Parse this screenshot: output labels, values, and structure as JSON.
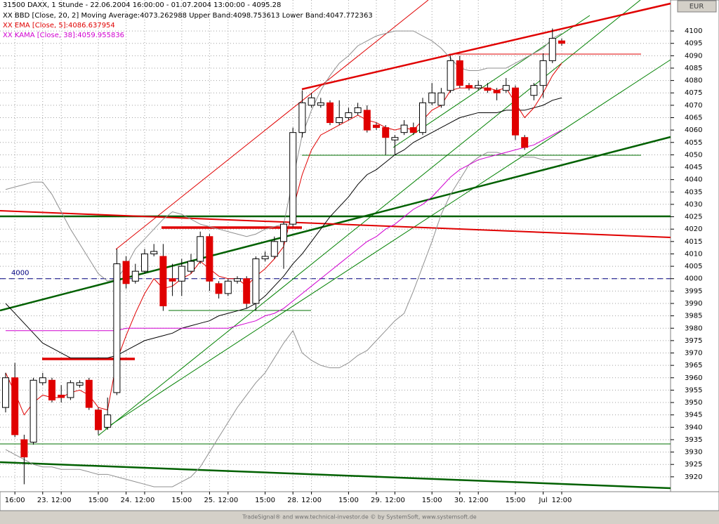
{
  "chart_data": {
    "type": "candlestick",
    "title": "31500 DAXX, 1 Stunde - 22.06.2004 16:00:00 - 01.07.2004 13:00:00 - 4095.28",
    "currency": "EUR",
    "footer": "TradeSignal® and www.technical-investor.de © by SystemSoft, www.systemsoft.de",
    "legend": [
      {
        "text": "XX BBD [Close, 20, 2] Moving Average:4073.262988 Upper Band:4098.753613 Lower Band:4047.772363",
        "color": "#000000"
      },
      {
        "text": "XX EMA [Close, 5]:4086.637954",
        "color": "#e00000"
      },
      {
        "text": "XX KAMA [Close, 38]:4059.955836",
        "color": "#d000d0"
      }
    ],
    "reference_line": 4000,
    "categories": [
      null,
      "16:00",
      null,
      null,
      "23.",
      null,
      "12:00",
      null,
      null,
      null,
      "15:00",
      null,
      null,
      "24.",
      null,
      "12:00",
      null,
      null,
      null,
      "15:00",
      null,
      null,
      "25.",
      null,
      "12:00",
      null,
      null,
      null,
      "15:00",
      null,
      null,
      "28.",
      null,
      "12:00",
      null,
      null,
      null,
      "15:00",
      null,
      null,
      "29.",
      null,
      "12:00",
      null,
      null,
      null,
      "15:00",
      null,
      null,
      "30.",
      null,
      "12:00",
      null,
      null,
      null,
      "15:00",
      null,
      null,
      "Jul",
      null,
      "12:00"
    ],
    "open": [
      3948,
      3960,
      3935,
      3934,
      3958,
      3959,
      3953,
      3952,
      3957,
      3959,
      3947,
      3940,
      3954,
      4007,
      3999,
      4003,
      4010,
      4009,
      4000,
      3999,
      4003,
      4007,
      4017,
      3998,
      3994,
      3999,
      4000,
      3990,
      4008,
      4009,
      4015,
      4022,
      4059,
      4070,
      4070,
      4071,
      4063,
      4065,
      4067,
      4068,
      4062,
      4061,
      4056,
      4059,
      4061,
      4059,
      4071,
      4070,
      4076,
      4088,
      4078,
      4077,
      4077,
      4076,
      4076,
      4077,
      4057,
      4074,
      4078,
      4088,
      4096
    ],
    "high": [
      3962,
      3966,
      3937,
      3960,
      3962,
      3960,
      3957,
      3959,
      3959,
      3960,
      3948,
      3952,
      4012,
      4009,
      4006,
      4012,
      4014,
      4014,
      4006,
      4008,
      4010,
      4019,
      4018,
      3999,
      4000,
      4001,
      4001,
      4009,
      4011,
      4017,
      4023,
      4061,
      4076,
      4075,
      4073,
      4072,
      4072,
      4069,
      4071,
      4070,
      4063,
      4062,
      4058,
      4064,
      4063,
      4073,
      4079,
      4077,
      4090,
      4090,
      4079,
      4080,
      4079,
      4077,
      4081,
      4078,
      4058,
      4079,
      4091,
      4101,
      4097
    ],
    "low": [
      3946,
      3936,
      3917,
      3933,
      3957,
      3950,
      3950,
      3951,
      3956,
      3947,
      3937,
      3939,
      3953,
      3996,
      3998,
      4002,
      4009,
      3987,
      3993,
      3993,
      4002,
      4006,
      3995,
      3992,
      3993,
      3998,
      3988,
      3987,
      4007,
      4008,
      4004,
      4021,
      4057,
      4069,
      4069,
      4062,
      4062,
      4064,
      4066,
      4059,
      4060,
      4050,
      4050,
      4058,
      4058,
      4058,
      4070,
      4069,
      4075,
      4077,
      4076,
      4076,
      4075,
      4072,
      4075,
      4056,
      4052,
      4072,
      4073,
      4087,
      4094
    ],
    "close": [
      3960,
      3937,
      3928,
      3959,
      3960,
      3951,
      3952,
      3958,
      3958,
      3948,
      3939,
      3945,
      4006,
      3998,
      4003,
      4010,
      4011,
      3989,
      3999,
      4005,
      4007,
      4017,
      3999,
      3994,
      3999,
      4000,
      3990,
      4008,
      4009,
      4015,
      4022,
      4059,
      4071,
      4073,
      4071,
      4063,
      4065,
      4067,
      4069,
      4060,
      4061,
      4057,
      4057,
      4062,
      4059,
      4071,
      4075,
      4075,
      4088,
      4078,
      4077,
      4078,
      4076,
      4075,
      4078,
      4058,
      4053,
      4078,
      4088,
      4097,
      4095
    ],
    "up_color": "#ffffff",
    "down_color": "#e00000",
    "series": [
      {
        "color": "#909090",
        "values": [
          4036,
          4037,
          4038,
          4039,
          4039,
          4034,
          4027,
          4020,
          4014,
          4008,
          4002,
          3999,
          4000,
          4005,
          4012,
          4016,
          4020,
          4024,
          4027,
          4026,
          4024,
          4022,
          4021,
          4020,
          4019,
          4018,
          4017,
          4018,
          4020,
          4021,
          4022,
          4040,
          4058,
          4068,
          4076,
          4082,
          4087,
          4090,
          4094,
          4096,
          4098,
          4099,
          4100,
          4100,
          4100,
          4098,
          4096,
          4093,
          4089,
          4085,
          4084,
          4084,
          4085,
          4085,
          4085,
          4087,
          4089,
          4091,
          4093,
          4097,
          4099
        ]
      },
      {
        "color": "#000000",
        "values": [
          3990,
          3986,
          3982,
          3978,
          3974,
          3972,
          3970,
          3968,
          3968,
          3968,
          3968,
          3968,
          3969,
          3971,
          3973,
          3975,
          3976,
          3977,
          3978,
          3980,
          3981,
          3982,
          3983,
          3985,
          3986,
          3987,
          3988,
          3990,
          3993,
          3997,
          4001,
          4006,
          4010,
          4015,
          4020,
          4025,
          4029,
          4033,
          4038,
          4042,
          4044,
          4047,
          4050,
          4052,
          4055,
          4057,
          4059,
          4061,
          4063,
          4065,
          4066,
          4067,
          4067,
          4067,
          4068,
          4068,
          4068,
          4069,
          4070,
          4072,
          4073
        ]
      },
      {
        "color": "#909090",
        "values": [
          3931,
          3929,
          3927,
          3925,
          3924,
          3924,
          3923,
          3923,
          3923,
          3922,
          3921,
          3921,
          3920,
          3919,
          3918,
          3917,
          3916,
          3916,
          3916,
          3918,
          3920,
          3924,
          3930,
          3936,
          3942,
          3948,
          3953,
          3958,
          3962,
          3968,
          3974,
          3979,
          3970,
          3967,
          3965,
          3964,
          3964,
          3966,
          3969,
          3971,
          3975,
          3979,
          3983,
          3986,
          3995,
          4005,
          4015,
          4026,
          4034,
          4040,
          4046,
          4049,
          4051,
          4051,
          4050,
          4050,
          4049,
          4049,
          4048,
          4048,
          4048
        ]
      },
      {
        "color": "#e00000",
        "values": [
          3962,
          3954,
          3945,
          3950,
          3953,
          3952,
          3952,
          3954,
          3955,
          3953,
          3948,
          3947,
          3967,
          3977,
          3986,
          3994,
          4000,
          3996,
          3997,
          4000,
          4002,
          4007,
          4004,
          4001,
          4000,
          4000,
          3997,
          4001,
          4004,
          4008,
          4013,
          4028,
          4042,
          4052,
          4058,
          4060,
          4062,
          4064,
          4066,
          4064,
          4063,
          4061,
          4060,
          4061,
          4060,
          4064,
          4068,
          4070,
          4076,
          4077,
          4077,
          4077,
          4077,
          4076,
          4077,
          4071,
          4065,
          4069,
          4075,
          4082,
          4087
        ]
      },
      {
        "color": "#d000d0",
        "values": [
          3979,
          3979,
          3979,
          3979,
          3979,
          3979,
          3979,
          3979,
          3979,
          3979,
          3979,
          3979,
          3979,
          3980,
          3980,
          3980,
          3980,
          3980,
          3980,
          3980,
          3980,
          3980,
          3980,
          3980,
          3980,
          3981,
          3982,
          3983,
          3985,
          3986,
          3988,
          3991,
          3994,
          3997,
          4000,
          4003,
          4006,
          4009,
          4012,
          4015,
          4017,
          4020,
          4022,
          4025,
          4028,
          4030,
          4033,
          4037,
          4041,
          4044,
          4046,
          4048,
          4049,
          4050,
          4051,
          4052,
          4053,
          4054,
          4056,
          4058,
          4060
        ]
      }
    ],
    "ylim": [
      3914,
      4112.5
    ],
    "yticks": [
      3920,
      3925,
      3930,
      3935,
      3940,
      3945,
      3950,
      3955,
      3960,
      3965,
      3970,
      3975,
      3980,
      3985,
      3990,
      3995,
      4000,
      4005,
      4010,
      4015,
      4020,
      4025,
      4030,
      4035,
      4040,
      4045,
      4050,
      4055,
      4060,
      4065,
      4070,
      4075,
      4080,
      4085,
      4090,
      4095,
      4100
    ],
    "grid": true
  }
}
